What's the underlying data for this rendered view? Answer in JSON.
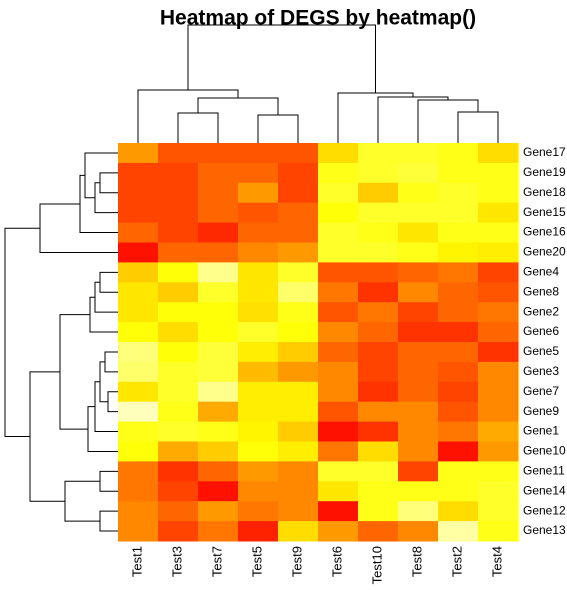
{
  "chart_data": {
    "type": "heatmap",
    "title": "Heatmap of DEGS by heatmap()",
    "columns": [
      "Test1",
      "Test3",
      "Test7",
      "Test5",
      "Test9",
      "Test6",
      "Test10",
      "Test8",
      "Test2",
      "Test4"
    ],
    "rows": [
      "Gene17",
      "Gene19",
      "Gene18",
      "Gene15",
      "Gene16",
      "Gene20",
      "Gene4",
      "Gene8",
      "Gene2",
      "Gene6",
      "Gene5",
      "Gene3",
      "Gene7",
      "Gene9",
      "Gene1",
      "Gene10",
      "Gene11",
      "Gene14",
      "Gene12",
      "Gene13"
    ],
    "values": [
      [
        0.45,
        0.25,
        0.25,
        0.25,
        0.25,
        0.65,
        0.8,
        0.8,
        0.78,
        0.65
      ],
      [
        0.2,
        0.2,
        0.3,
        0.3,
        0.2,
        0.78,
        0.8,
        0.82,
        0.78,
        0.78
      ],
      [
        0.2,
        0.2,
        0.3,
        0.45,
        0.2,
        0.8,
        0.6,
        0.78,
        0.8,
        0.78
      ],
      [
        0.2,
        0.2,
        0.3,
        0.25,
        0.3,
        0.76,
        0.8,
        0.8,
        0.8,
        0.68
      ],
      [
        0.3,
        0.2,
        0.12,
        0.3,
        0.3,
        0.8,
        0.78,
        0.68,
        0.78,
        0.78
      ],
      [
        0.05,
        0.3,
        0.3,
        0.4,
        0.45,
        0.8,
        0.8,
        0.78,
        0.72,
        0.7
      ],
      [
        0.6,
        0.76,
        0.92,
        0.68,
        0.8,
        0.25,
        0.25,
        0.3,
        0.35,
        0.2
      ],
      [
        0.68,
        0.6,
        0.8,
        0.68,
        0.88,
        0.35,
        0.15,
        0.4,
        0.3,
        0.25
      ],
      [
        0.68,
        0.76,
        0.76,
        0.66,
        0.78,
        0.25,
        0.35,
        0.2,
        0.3,
        0.35
      ],
      [
        0.76,
        0.65,
        0.76,
        0.8,
        0.76,
        0.4,
        0.3,
        0.15,
        0.15,
        0.3
      ],
      [
        0.9,
        0.76,
        0.82,
        0.7,
        0.6,
        0.3,
        0.2,
        0.3,
        0.3,
        0.15
      ],
      [
        0.88,
        0.8,
        0.82,
        0.55,
        0.45,
        0.4,
        0.2,
        0.3,
        0.25,
        0.4
      ],
      [
        0.68,
        0.8,
        0.92,
        0.7,
        0.7,
        0.4,
        0.15,
        0.3,
        0.2,
        0.4
      ],
      [
        0.98,
        0.78,
        0.5,
        0.7,
        0.7,
        0.25,
        0.4,
        0.4,
        0.25,
        0.4
      ],
      [
        0.78,
        0.8,
        0.78,
        0.72,
        0.6,
        0.05,
        0.15,
        0.4,
        0.35,
        0.5
      ],
      [
        0.76,
        0.5,
        0.6,
        0.76,
        0.7,
        0.35,
        0.65,
        0.4,
        0.05,
        0.45
      ],
      [
        0.35,
        0.15,
        0.3,
        0.45,
        0.4,
        0.8,
        0.8,
        0.2,
        0.78,
        0.78
      ],
      [
        0.35,
        0.2,
        0.05,
        0.4,
        0.4,
        0.68,
        0.78,
        0.78,
        0.78,
        0.8
      ],
      [
        0.4,
        0.3,
        0.45,
        0.35,
        0.4,
        0.05,
        0.78,
        0.9,
        0.65,
        0.8
      ],
      [
        0.4,
        0.2,
        0.35,
        0.1,
        0.65,
        0.45,
        0.3,
        0.4,
        0.95,
        0.78
      ]
    ]
  }
}
